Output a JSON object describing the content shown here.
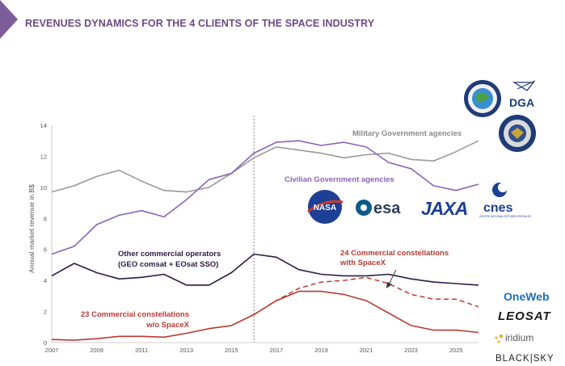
{
  "title": "REVENUES DYNAMICS FOR THE 4 CLIENTS OF THE SPACE INDUSTRY",
  "chart_data": {
    "type": "line",
    "ylabel": "Annual market revenue in B$",
    "xlabel": "",
    "ylim": [
      0,
      14
    ],
    "xlim": [
      2007,
      2026
    ],
    "y_ticks": [
      0,
      2,
      4,
      6,
      8,
      10,
      12,
      14
    ],
    "x_ticks": [
      2007,
      2009,
      2011,
      2013,
      2015,
      2017,
      2019,
      2021,
      2023,
      2025
    ],
    "grid": false,
    "forecast_divider_year": 2016,
    "x": [
      2007,
      2008,
      2009,
      2010,
      2011,
      2012,
      2013,
      2014,
      2015,
      2016,
      2017,
      2018,
      2019,
      2020,
      2021,
      2022,
      2023,
      2024,
      2025,
      2026
    ],
    "series": [
      {
        "name": "Military Government agencies",
        "color": "#9a9a9a",
        "dashed": false,
        "values": [
          9.7,
          10.1,
          10.7,
          11.1,
          10.4,
          9.8,
          9.7,
          10.0,
          10.9,
          11.9,
          12.6,
          12.4,
          12.2,
          11.9,
          12.1,
          12.2,
          11.8,
          11.7,
          12.3,
          13.0
        ]
      },
      {
        "name": "Civilian Government agencies",
        "color": "#8a64b6",
        "dashed": false,
        "values": [
          5.7,
          6.2,
          7.6,
          8.2,
          8.5,
          8.1,
          9.2,
          10.5,
          10.9,
          12.2,
          12.9,
          13.0,
          12.7,
          12.9,
          12.6,
          11.6,
          11.2,
          10.1,
          9.8,
          10.2
        ]
      },
      {
        "name": "Other commercial operators\n(GEO comsat + EOsat SSO)",
        "color": "#2f1a45",
        "dashed": false,
        "values": [
          4.3,
          5.1,
          4.5,
          4.1,
          4.2,
          4.4,
          3.7,
          3.7,
          4.5,
          5.7,
          5.5,
          4.7,
          4.4,
          4.3,
          4.3,
          4.4,
          4.1,
          3.9,
          3.8,
          3.7
        ]
      },
      {
        "name": "23 Commercial constellations\nw/o SpaceX",
        "color": "#b83a32",
        "dashed": false,
        "values": [
          0.2,
          0.15,
          0.25,
          0.4,
          0.4,
          0.35,
          0.6,
          0.9,
          1.1,
          1.8,
          2.7,
          3.3,
          3.3,
          3.1,
          2.7,
          1.9,
          1.1,
          0.8,
          0.8,
          0.65
        ]
      },
      {
        "name": "24 Commercial constellations\nwith SpaceX",
        "color": "#b83a32",
        "dashed": true,
        "values": [
          null,
          null,
          null,
          null,
          null,
          null,
          null,
          null,
          null,
          1.8,
          2.7,
          3.5,
          3.9,
          4.0,
          4.2,
          3.8,
          3.1,
          2.8,
          2.8,
          2.3
        ]
      }
    ]
  },
  "labels": {
    "military": "Military Government agencies",
    "civilian": "Civilian Government agencies",
    "other_line1": "Other commercial operators",
    "other_line2": "(GEO comsat + EOsat SSO)",
    "c24_line1": "24 Commercial constellations",
    "c24_line2": "with SpaceX",
    "c23_line1": "23 Commercial constellations",
    "c23_line2": "w/o SpaceX"
  },
  "logos": {
    "dga": "DGA",
    "nasa": "NASA",
    "esa": "esa",
    "jaxa": "JAXA",
    "cnes": "cnes",
    "cnes_sub": "CENTRE NATIONAL D'ÉTUDES SPATIALES",
    "oneweb": "OneWeb",
    "leosat": "LEOSAT",
    "iridium": "iridium",
    "blacksky": "BLACK|SKY"
  },
  "colors": {
    "accent": "#6a4a86",
    "triangle": "#7c5d99"
  }
}
